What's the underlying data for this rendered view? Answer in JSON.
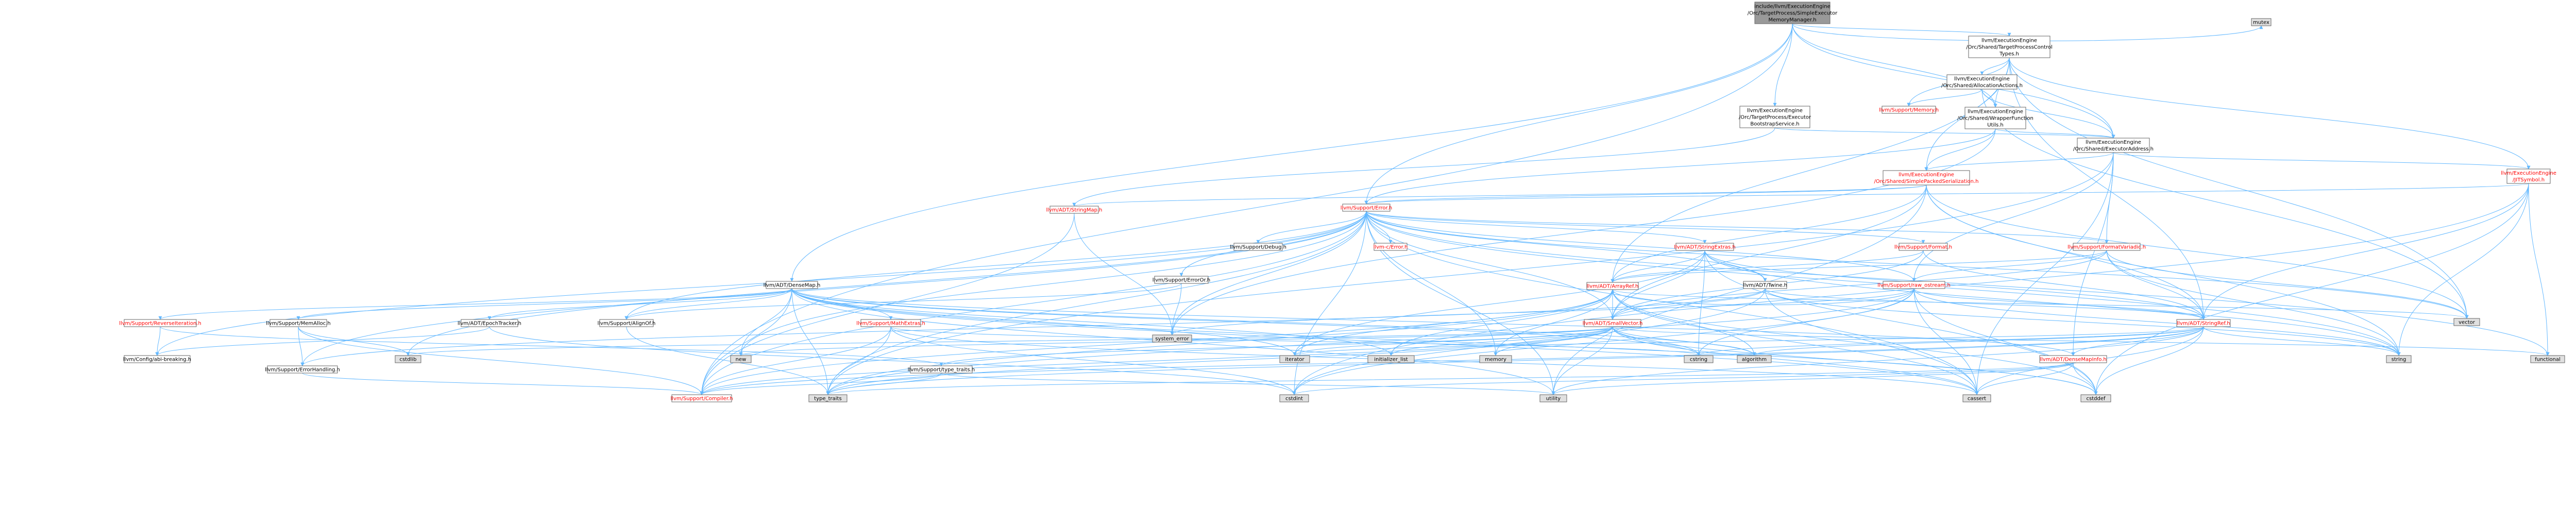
{
  "colors": {
    "node_border": "#666666",
    "node_fill": "#ffffff",
    "root_fill": "#999999",
    "system_fill": "#e0e0e0",
    "red_text": "#ff0000",
    "edge": "#63b8ff"
  },
  "nodes": {
    "root": [
      "include/llvm/ExecutionEngine",
      "/Orc/TargetProcess/SimpleExecutor",
      "MemoryManager.h"
    ],
    "mutex": [
      "mutex"
    ],
    "tpctypes": [
      "llvm/ExecutionEngine",
      "/Orc/Shared/TargetProcessControl",
      "Types.h"
    ],
    "allocactions": [
      "llvm/ExecutionEngine",
      "/Orc/Shared/AllocationActions.h"
    ],
    "memory": [
      "llvm/Support/Memory.h"
    ],
    "wrapperfn": [
      "llvm/ExecutionEngine",
      "/Orc/Shared/WrapperFunction",
      "Utils.h"
    ],
    "bootstrap": [
      "llvm/ExecutionEngine",
      "/Orc/TargetProcess/Executor",
      "BootstrapService.h"
    ],
    "execaddr": [
      "llvm/ExecutionEngine",
      "/Orc/Shared/ExecutorAddress.h"
    ],
    "spsser": [
      "llvm/ExecutionEngine",
      "/Orc/Shared/SimplePackedSerialization.h"
    ],
    "jitsymbol": [
      "llvm/ExecutionEngine",
      "/JITSymbol.h"
    ],
    "stringmap": [
      "llvm/ADT/StringMap.h"
    ],
    "error": [
      "llvm/Support/Error.h"
    ],
    "debug": [
      "llvm/Support/Debug.h"
    ],
    "errorh": [
      "llvm-c/Error.h"
    ],
    "stringextras": [
      "llvm/ADT/StringExtras.h"
    ],
    "format": [
      "llvm/Support/Format.h"
    ],
    "formatvariadic": [
      "llvm/Support/FormatVariadic.h"
    ],
    "erroror": [
      "llvm/Support/ErrorOr.h"
    ],
    "densemap": [
      "llvm/ADT/DenseMap.h"
    ],
    "arrayref": [
      "llvm/ADT/ArrayRef.h"
    ],
    "twine": [
      "llvm/ADT/Twine.h"
    ],
    "raw_ostream": [
      "llvm/Support/raw_ostream.h"
    ],
    "reverseiter": [
      "llvm/Support/ReverseIteration.h"
    ],
    "memalloc": [
      "llvm/Support/MemAlloc.h"
    ],
    "epochtracker": [
      "llvm/ADT/EpochTracker.h"
    ],
    "alignof": [
      "llvm/Support/AlignOf.h"
    ],
    "mathextras": [
      "llvm/Support/MathExtras.h"
    ],
    "smallvector": [
      "llvm/ADT/SmallVector.h"
    ],
    "stringref": [
      "llvm/ADT/StringRef.h"
    ],
    "densemapinfo": [
      "llvm/ADT/DenseMapInfo.h"
    ],
    "abibreaking": [
      "llvm/Config/abi-breaking.h"
    ],
    "errorhandling": [
      "llvm/Support/ErrorHandling.h"
    ],
    "typetraits": [
      "llvm/Support/type_traits.h"
    ],
    "compiler": [
      "llvm/Support/Compiler.h"
    ],
    "system_error": [
      "system_error"
    ],
    "new": [
      "new"
    ],
    "cstdlib": [
      "cstdlib"
    ],
    "iterator": [
      "iterator"
    ],
    "initlist": [
      "initializer_list"
    ],
    "memory_std": [
      "memory"
    ],
    "cstring": [
      "cstring"
    ],
    "algorithm": [
      "algorithm"
    ],
    "type_traits": [
      "type_traits"
    ],
    "cstdint": [
      "cstdint"
    ],
    "utility": [
      "utility"
    ],
    "cassert": [
      "cassert"
    ],
    "cstddef": [
      "cstddef"
    ],
    "string": [
      "string"
    ],
    "functional": [
      "functional"
    ],
    "vector": [
      "vector"
    ]
  }
}
